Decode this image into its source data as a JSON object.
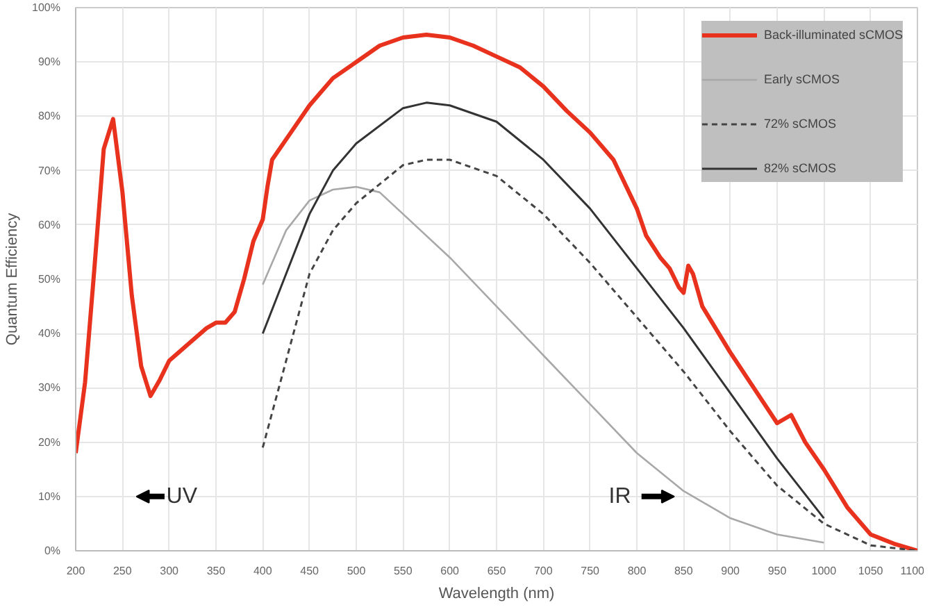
{
  "chart_data": {
    "type": "line",
    "xlabel": "Wavelength (nm)",
    "ylabel": "Quantum Efficiency",
    "xlim": [
      200,
      1100
    ],
    "xticks": [
      200,
      250,
      300,
      350,
      400,
      450,
      500,
      550,
      600,
      650,
      700,
      750,
      800,
      850,
      900,
      950,
      1000,
      1050,
      1100
    ],
    "ylim": [
      0,
      100
    ],
    "yticks": [
      {
        "value": 0,
        "label": "0%"
      },
      {
        "value": 10,
        "label": "10%"
      },
      {
        "value": 20,
        "label": "20%"
      },
      {
        "value": 30,
        "label": "30%"
      },
      {
        "value": 40,
        "label": "40%"
      },
      {
        "value": 50,
        "label": "50%"
      },
      {
        "value": 60,
        "label": "60%"
      },
      {
        "value": 70,
        "label": "70%"
      },
      {
        "value": 80,
        "label": "80%"
      },
      {
        "value": 90,
        "label": "90%"
      },
      {
        "value": 100,
        "label": "100%"
      }
    ],
    "grid": true,
    "legend": "top right",
    "marker": "none",
    "annotations": [
      "UV",
      "IR"
    ],
    "series": [
      {
        "name": "Back-illuminated sCMOS",
        "color": "#e8321e",
        "line_style": "solid",
        "x": [
          200,
          210,
          220,
          230,
          240,
          250,
          260,
          270,
          280,
          290,
          300,
          320,
          340,
          350,
          360,
          370,
          380,
          390,
          400,
          405,
          410,
          430,
          450,
          475,
          500,
          525,
          550,
          575,
          600,
          625,
          650,
          675,
          700,
          725,
          750,
          775,
          800,
          810,
          825,
          835,
          845,
          850,
          855,
          860,
          870,
          900,
          925,
          950,
          965,
          980,
          1000,
          1025,
          1050,
          1075,
          1100
        ],
        "values": [
          18,
          31,
          52,
          74,
          79.5,
          66,
          47,
          34,
          28.5,
          31.5,
          35,
          38,
          41,
          42,
          42,
          44,
          50,
          57,
          61,
          67,
          72,
          77,
          82,
          87,
          90,
          93,
          94.5,
          95,
          94.5,
          93,
          91,
          89,
          85.5,
          81,
          77,
          72,
          63,
          58,
          54,
          52,
          48.5,
          47.5,
          52.5,
          51,
          45,
          36.5,
          30,
          23.5,
          25,
          20,
          15,
          8,
          3,
          1.3,
          0
        ]
      },
      {
        "name": "Early sCMOS",
        "color": "#a8a8a8",
        "line_style": "solid",
        "x": [
          400,
          425,
          450,
          475,
          500,
          525,
          550,
          600,
          650,
          700,
          750,
          800,
          850,
          900,
          950,
          1000
        ],
        "values": [
          49,
          59,
          64.5,
          66.5,
          67,
          66,
          62,
          54,
          45,
          36,
          27,
          18,
          11,
          6,
          3,
          1.5
        ]
      },
      {
        "name": "72% sCMOS",
        "color": "#444444",
        "line_style": "dashed",
        "x": [
          400,
          425,
          450,
          475,
          500,
          550,
          575,
          600,
          650,
          700,
          750,
          800,
          850,
          900,
          950,
          1000,
          1050,
          1100
        ],
        "values": [
          19,
          35,
          51,
          59,
          64,
          71,
          72,
          72,
          69,
          62,
          53,
          43,
          33,
          22,
          12,
          5,
          1,
          0
        ]
      },
      {
        "name": "82% sCMOS",
        "color": "#333333",
        "line_style": "solid",
        "x": [
          400,
          425,
          450,
          475,
          500,
          550,
          575,
          600,
          650,
          700,
          750,
          800,
          850,
          900,
          950,
          1000
        ],
        "values": [
          40,
          51,
          62,
          70,
          75,
          81.5,
          82.5,
          82,
          79,
          72,
          63,
          52,
          41,
          29,
          17,
          6
        ]
      }
    ]
  }
}
